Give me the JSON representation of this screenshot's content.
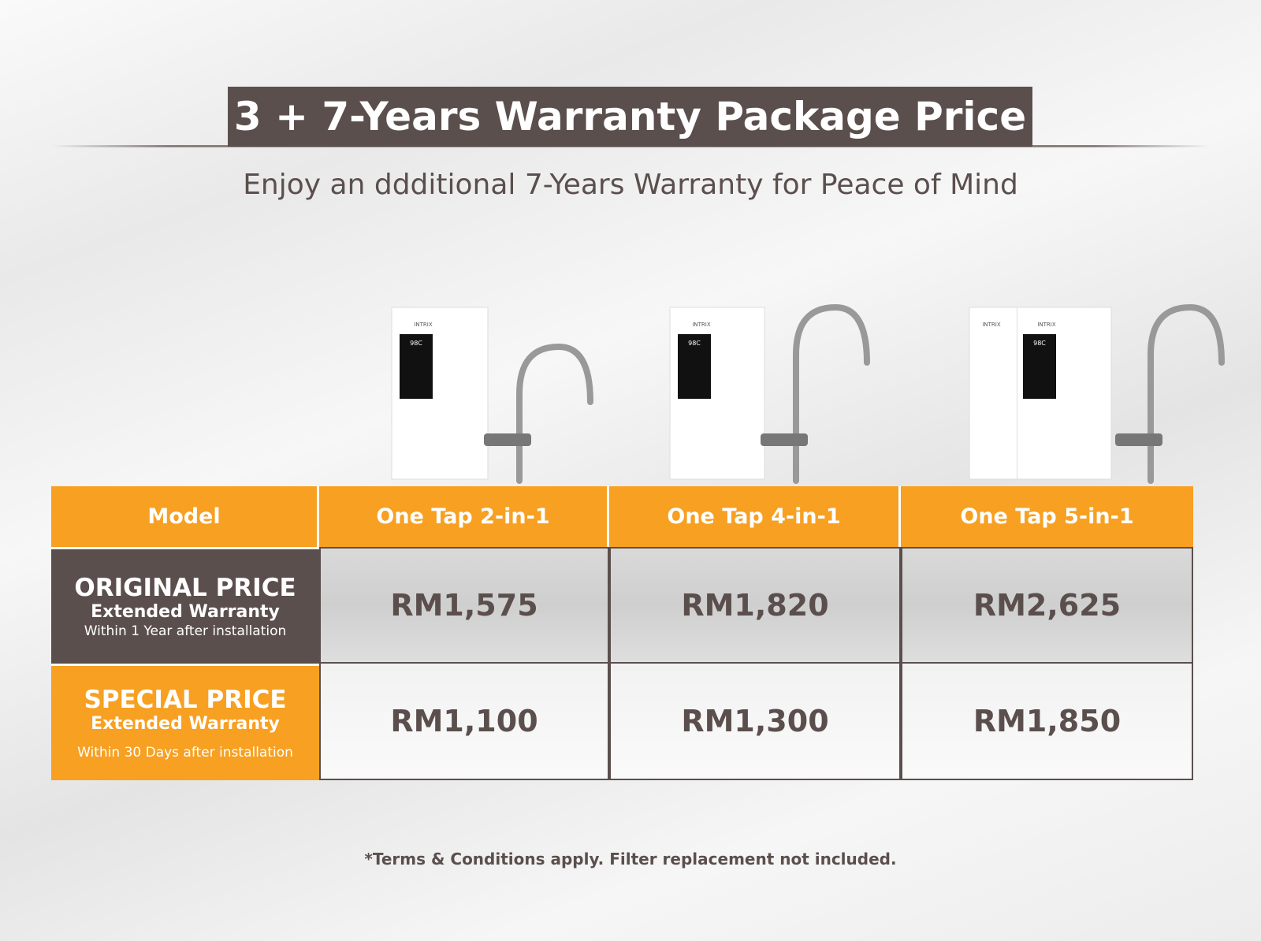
{
  "header": {
    "title": "3 + 7-Years Warranty Package Price",
    "subtitle": "Enjoy an ddditional 7-Years Warranty for Peace of Mind"
  },
  "products": [
    {
      "brand": "INTRIX",
      "display": "98C"
    },
    {
      "brand": "INTRIX",
      "display": "98C"
    },
    {
      "brand": "INTRIX",
      "display": "98C"
    }
  ],
  "table": {
    "columns": [
      "Model",
      "One Tap 2-in-1",
      "One Tap 4-in-1",
      "One Tap 5-in-1"
    ],
    "rows": [
      {
        "label": "ORIGINAL PRICE",
        "sublabel": "Extended Warranty",
        "note": "Within 1 Year after installation",
        "prices": [
          "RM1,575",
          "RM1,820",
          "RM2,625"
        ]
      },
      {
        "label": "SPECIAL PRICE",
        "sublabel": "Extended Warranty",
        "note": "Within 30 Days after installation",
        "prices": [
          "RM1,100",
          "RM1,300",
          "RM1,850"
        ]
      }
    ]
  },
  "footer": {
    "note": "*Terms & Conditions apply. Filter replacement not included."
  }
}
